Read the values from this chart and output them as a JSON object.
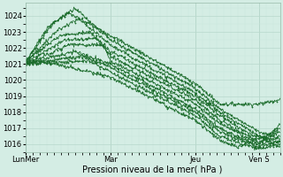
{
  "xlabel": "Pression niveau de la mer( hPa )",
  "bg_color": "#d4ede4",
  "grid_major_color": "#b8d8cc",
  "grid_minor_color": "#c8e8dc",
  "line_color": "#1a6b2a",
  "ylim": [
    1015.5,
    1024.8
  ],
  "xlim_max": 144,
  "xtick_labels": [
    "LunMer",
    "Mar",
    "Jeu",
    "Ven S"
  ],
  "xtick_positions": [
    0,
    48,
    96,
    132
  ],
  "series": [
    {
      "keypoints": [
        [
          0,
          1021.1
        ],
        [
          12,
          1023.2
        ],
        [
          24,
          1024.2
        ],
        [
          48,
          1022.8
        ],
        [
          96,
          1019.8
        ],
        [
          110,
          1018.5
        ],
        [
          132,
          1018.5
        ],
        [
          144,
          1018.8
        ]
      ]
    },
    {
      "keypoints": [
        [
          0,
          1021.1
        ],
        [
          15,
          1023.5
        ],
        [
          28,
          1024.5
        ],
        [
          48,
          1022.5
        ],
        [
          96,
          1019.5
        ],
        [
          110,
          1018.2
        ],
        [
          132,
          1016.8
        ],
        [
          144,
          1016.3
        ]
      ]
    },
    {
      "keypoints": [
        [
          0,
          1021.1
        ],
        [
          18,
          1023.1
        ],
        [
          30,
          1023.8
        ],
        [
          48,
          1022.2
        ],
        [
          96,
          1019.2
        ],
        [
          110,
          1018.0
        ],
        [
          132,
          1016.5
        ],
        [
          144,
          1016.1
        ]
      ]
    },
    {
      "keypoints": [
        [
          0,
          1021.2
        ],
        [
          20,
          1022.8
        ],
        [
          36,
          1023.0
        ],
        [
          48,
          1021.8
        ],
        [
          96,
          1019.0
        ],
        [
          110,
          1017.8
        ],
        [
          132,
          1016.3
        ],
        [
          144,
          1017.0
        ]
      ]
    },
    {
      "keypoints": [
        [
          0,
          1021.1
        ],
        [
          22,
          1022.5
        ],
        [
          40,
          1022.6
        ],
        [
          48,
          1021.5
        ],
        [
          96,
          1018.8
        ],
        [
          110,
          1017.5
        ],
        [
          132,
          1016.1
        ],
        [
          144,
          1016.8
        ]
      ]
    },
    {
      "keypoints": [
        [
          0,
          1021.0
        ],
        [
          25,
          1022.2
        ],
        [
          44,
          1022.2
        ],
        [
          48,
          1021.2
        ],
        [
          96,
          1018.5
        ],
        [
          110,
          1017.3
        ],
        [
          132,
          1016.0
        ],
        [
          144,
          1017.2
        ]
      ]
    },
    {
      "keypoints": [
        [
          0,
          1021.0
        ],
        [
          28,
          1021.8
        ],
        [
          48,
          1021.0
        ],
        [
          96,
          1018.2
        ],
        [
          110,
          1017.0
        ],
        [
          132,
          1015.9
        ],
        [
          144,
          1016.5
        ]
      ]
    },
    {
      "keypoints": [
        [
          0,
          1021.0
        ],
        [
          32,
          1021.5
        ],
        [
          48,
          1020.8
        ],
        [
          96,
          1018.0
        ],
        [
          110,
          1016.8
        ],
        [
          132,
          1015.8
        ],
        [
          144,
          1016.2
        ]
      ]
    },
    {
      "keypoints": [
        [
          0,
          1021.0
        ],
        [
          36,
          1021.2
        ],
        [
          48,
          1020.5
        ],
        [
          96,
          1017.8
        ],
        [
          110,
          1016.5
        ],
        [
          132,
          1015.7
        ],
        [
          144,
          1016.0
        ]
      ]
    },
    {
      "keypoints": [
        [
          0,
          1021.1
        ],
        [
          8,
          1021.2
        ],
        [
          48,
          1020.2
        ],
        [
          96,
          1017.5
        ],
        [
          110,
          1016.3
        ],
        [
          120,
          1015.8
        ],
        [
          132,
          1016.5
        ],
        [
          144,
          1015.8
        ]
      ]
    }
  ]
}
